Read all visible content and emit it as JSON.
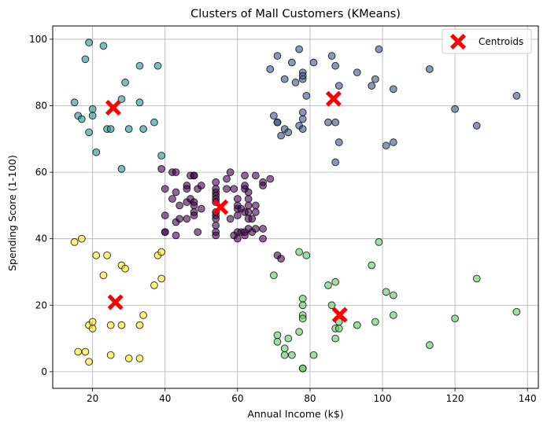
{
  "chart_data": {
    "type": "scatter",
    "title": "Clusters of Mall Customers (KMeans)",
    "xlabel": "Annual Income (k$)",
    "ylabel": "Spending Score (1-100)",
    "xlim": [
      9,
      143
    ],
    "ylim": [
      -5,
      104
    ],
    "xticks": [
      20,
      40,
      60,
      80,
      100,
      120,
      140
    ],
    "yticks": [
      0,
      20,
      40,
      60,
      80,
      100
    ],
    "grid": true,
    "legend": {
      "position": "top-right",
      "entries": [
        "Centroids"
      ]
    },
    "series": [
      {
        "color": "#440154",
        "points": [
          [
            39,
            61
          ],
          [
            40,
            55
          ],
          [
            40,
            47
          ],
          [
            40,
            42
          ],
          [
            40,
            42
          ],
          [
            42,
            52
          ],
          [
            42,
            60
          ],
          [
            43,
            54
          ],
          [
            43,
            60
          ],
          [
            43,
            45
          ],
          [
            43,
            41
          ],
          [
            44,
            50
          ],
          [
            44,
            46
          ],
          [
            46,
            51
          ],
          [
            46,
            46
          ],
          [
            46,
            56
          ],
          [
            46,
            55
          ],
          [
            47,
            52
          ],
          [
            47,
            59
          ],
          [
            48,
            51
          ],
          [
            48,
            59
          ],
          [
            48,
            50
          ],
          [
            48,
            48
          ],
          [
            48,
            59
          ],
          [
            48,
            47
          ],
          [
            49,
            55
          ],
          [
            49,
            42
          ],
          [
            50,
            49
          ],
          [
            50,
            56
          ],
          [
            54,
            47
          ],
          [
            54,
            54
          ],
          [
            54,
            53
          ],
          [
            54,
            48
          ],
          [
            54,
            52
          ],
          [
            54,
            42
          ],
          [
            54,
            51
          ],
          [
            54,
            55
          ],
          [
            54,
            41
          ],
          [
            54,
            44
          ],
          [
            54,
            57
          ],
          [
            54,
            46
          ],
          [
            57,
            58
          ],
          [
            57,
            55
          ],
          [
            58,
            60
          ],
          [
            58,
            46
          ],
          [
            59,
            55
          ],
          [
            59,
            41
          ],
          [
            60,
            49
          ],
          [
            60,
            40
          ],
          [
            60,
            42
          ],
          [
            60,
            52
          ],
          [
            60,
            47
          ],
          [
            60,
            50
          ],
          [
            61,
            42
          ],
          [
            61,
            49
          ],
          [
            62,
            41
          ],
          [
            62,
            48
          ],
          [
            62,
            59
          ],
          [
            62,
            55
          ],
          [
            62,
            56
          ],
          [
            62,
            42
          ],
          [
            63,
            50
          ],
          [
            63,
            46
          ],
          [
            63,
            43
          ],
          [
            63,
            48
          ],
          [
            63,
            52
          ],
          [
            63,
            54
          ],
          [
            64,
            42
          ],
          [
            64,
            46
          ],
          [
            65,
            48
          ],
          [
            65,
            50
          ],
          [
            65,
            43
          ],
          [
            65,
            59
          ],
          [
            67,
            43
          ],
          [
            67,
            57
          ],
          [
            67,
            56
          ],
          [
            67,
            40
          ],
          [
            69,
            58
          ],
          [
            71,
            35
          ],
          [
            72,
            34
          ]
        ]
      },
      {
        "color": "#3b528b",
        "points": [
          [
            69,
            91
          ],
          [
            70,
            77
          ],
          [
            71,
            95
          ],
          [
            71,
            75
          ],
          [
            71,
            75
          ],
          [
            72,
            71
          ],
          [
            73,
            88
          ],
          [
            73,
            73
          ],
          [
            74,
            72
          ],
          [
            75,
            93
          ],
          [
            76,
            87
          ],
          [
            77,
            97
          ],
          [
            77,
            74
          ],
          [
            78,
            90
          ],
          [
            78,
            88
          ],
          [
            78,
            76
          ],
          [
            78,
            89
          ],
          [
            78,
            78
          ],
          [
            78,
            73
          ],
          [
            79,
            83
          ],
          [
            81,
            93
          ],
          [
            85,
            75
          ],
          [
            86,
            95
          ],
          [
            87,
            63
          ],
          [
            87,
            75
          ],
          [
            87,
            92
          ],
          [
            88,
            86
          ],
          [
            88,
            69
          ],
          [
            93,
            90
          ],
          [
            97,
            86
          ],
          [
            98,
            88
          ],
          [
            99,
            97
          ],
          [
            101,
            68
          ],
          [
            103,
            85
          ],
          [
            103,
            69
          ],
          [
            113,
            91
          ],
          [
            120,
            79
          ],
          [
            126,
            74
          ],
          [
            137,
            83
          ]
        ]
      },
      {
        "color": "#21918c",
        "points": [
          [
            15,
            81
          ],
          [
            16,
            77
          ],
          [
            17,
            76
          ],
          [
            18,
            94
          ],
          [
            19,
            72
          ],
          [
            19,
            99
          ],
          [
            20,
            77
          ],
          [
            20,
            79
          ],
          [
            21,
            66
          ],
          [
            23,
            98
          ],
          [
            24,
            73
          ],
          [
            25,
            73
          ],
          [
            28,
            82
          ],
          [
            28,
            61
          ],
          [
            29,
            87
          ],
          [
            30,
            73
          ],
          [
            33,
            92
          ],
          [
            33,
            81
          ],
          [
            34,
            73
          ],
          [
            37,
            75
          ],
          [
            38,
            92
          ],
          [
            39,
            65
          ]
        ]
      },
      {
        "color": "#5ec962",
        "points": [
          [
            70,
            29
          ],
          [
            71,
            11
          ],
          [
            71,
            9
          ],
          [
            73,
            5
          ],
          [
            73,
            7
          ],
          [
            74,
            10
          ],
          [
            75,
            5
          ],
          [
            77,
            12
          ],
          [
            77,
            36
          ],
          [
            78,
            22
          ],
          [
            78,
            17
          ],
          [
            78,
            20
          ],
          [
            78,
            16
          ],
          [
            78,
            1
          ],
          [
            78,
            1
          ],
          [
            79,
            35
          ],
          [
            81,
            5
          ],
          [
            85,
            26
          ],
          [
            86,
            20
          ],
          [
            87,
            27
          ],
          [
            87,
            13
          ],
          [
            87,
            10
          ],
          [
            88,
            13
          ],
          [
            88,
            15
          ],
          [
            93,
            14
          ],
          [
            97,
            32
          ],
          [
            98,
            15
          ],
          [
            99,
            39
          ],
          [
            101,
            24
          ],
          [
            103,
            17
          ],
          [
            103,
            23
          ],
          [
            113,
            8
          ],
          [
            120,
            16
          ],
          [
            126,
            28
          ],
          [
            137,
            18
          ]
        ]
      },
      {
        "color": "#fde725",
        "points": [
          [
            15,
            39
          ],
          [
            16,
            6
          ],
          [
            17,
            40
          ],
          [
            18,
            6
          ],
          [
            19,
            3
          ],
          [
            19,
            14
          ],
          [
            20,
            15
          ],
          [
            20,
            13
          ],
          [
            21,
            35
          ],
          [
            23,
            29
          ],
          [
            24,
            35
          ],
          [
            25,
            5
          ],
          [
            25,
            14
          ],
          [
            28,
            14
          ],
          [
            28,
            32
          ],
          [
            29,
            31
          ],
          [
            30,
            4
          ],
          [
            33,
            4
          ],
          [
            33,
            14
          ],
          [
            34,
            17
          ],
          [
            37,
            26
          ],
          [
            38,
            35
          ],
          [
            39,
            36
          ],
          [
            39,
            28
          ]
        ]
      }
    ],
    "centroids": {
      "name": "Centroids",
      "color": "#ff0000",
      "points": [
        [
          55.3,
          49.5
        ],
        [
          86.5,
          82.1
        ],
        [
          25.7,
          79.4
        ],
        [
          88.2,
          17.1
        ],
        [
          26.3,
          20.9
        ]
      ]
    }
  }
}
